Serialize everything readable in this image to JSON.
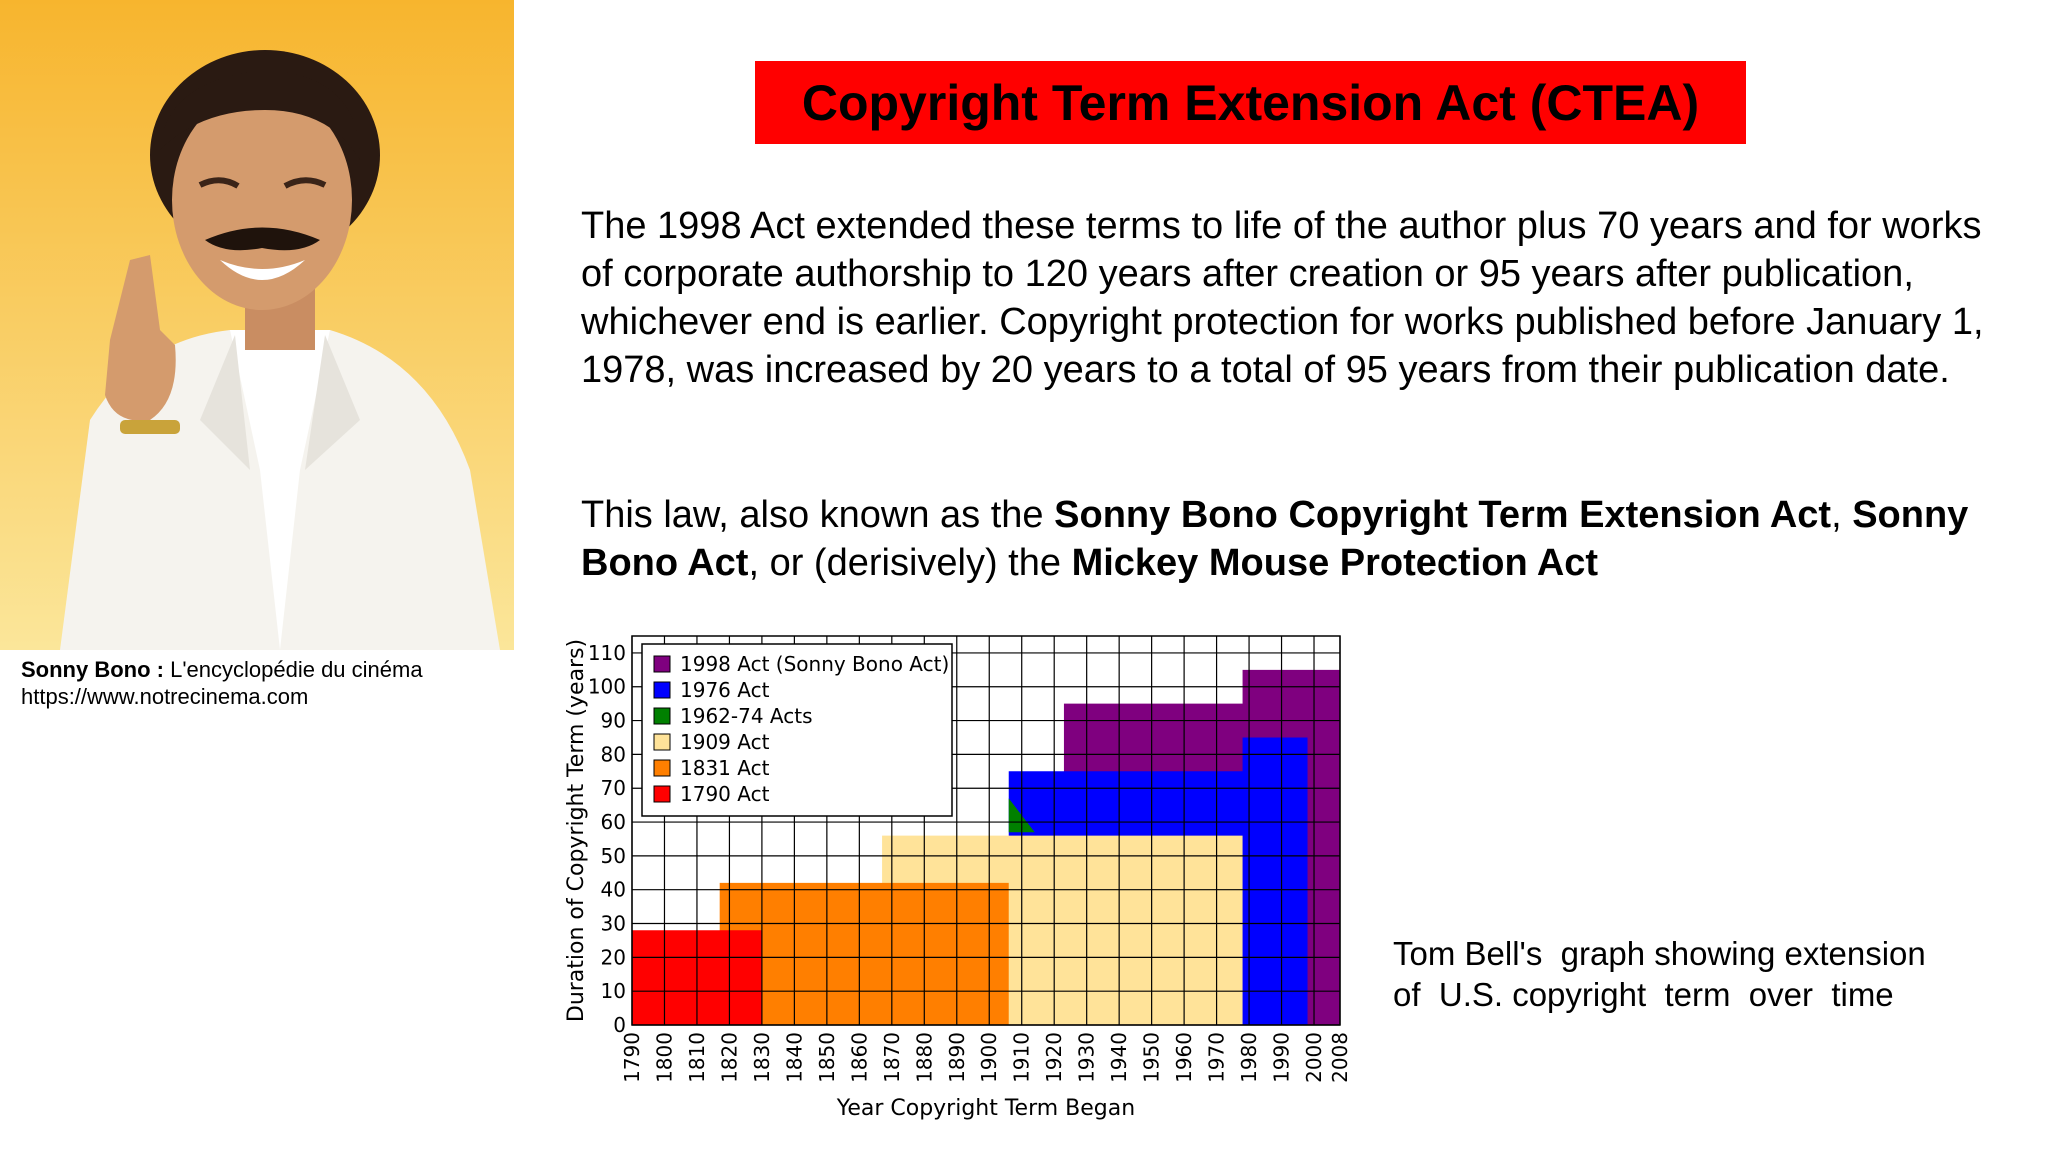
{
  "photo": {
    "description_icon": "portrait-photo",
    "caption_name": "Sonny Bono :",
    "caption_source": " L'encyclopédie du cinéma",
    "caption_url": "https://www.notrecinema.com"
  },
  "title": "Copyright Term Extension Act (CTEA)",
  "paragraph1": "The 1998 Act extended these terms to life of the author plus 70 years and for works of corporate authorship to 120 years after creation or 95 years after publication, whichever end is earlier.  Copyright protection for works published before January 1, 1978, was increased by 20 years to a total of 95 years from their publication date.",
  "paragraph2": {
    "p1": "This law, also known as the ",
    "b1": "Sonny Bono Copyright Term Extension Act",
    "p2": ", ",
    "b2": "Sonny Bono Act",
    "p3": ", or (derisively) the ",
    "b3": "Mickey Mouse Protection Act"
  },
  "chart_caption": "Tom Bell's  graph showing extension\nof  U.S. copyright  term  over  time",
  "chart_data": {
    "type": "area",
    "xlabel": "Year Copyright Term Began",
    "ylabel": "Duration of Copyright Term (years)",
    "xlim": [
      1790,
      2008
    ],
    "ylim": [
      0,
      115
    ],
    "x_ticks": [
      1790,
      1800,
      1810,
      1820,
      1830,
      1840,
      1850,
      1860,
      1870,
      1880,
      1890,
      1900,
      1910,
      1920,
      1930,
      1940,
      1950,
      1960,
      1970,
      1980,
      1990,
      2000,
      2008
    ],
    "y_ticks": [
      0,
      10,
      20,
      30,
      40,
      50,
      60,
      70,
      80,
      90,
      100,
      110
    ],
    "grid": true,
    "legend_position": "top-left",
    "series": [
      {
        "name": "1998 Act (Sonny Bono Act)",
        "color": "#7f007f",
        "points": [
          [
            1923,
            95
          ],
          [
            1978,
            95
          ],
          [
            1978,
            105
          ],
          [
            2008,
            105
          ]
        ]
      },
      {
        "name": "1976 Act",
        "color": "#0000ff",
        "points": [
          [
            1906,
            75
          ],
          [
            1978,
            75
          ],
          [
            1978,
            85
          ],
          [
            1998,
            85
          ]
        ]
      },
      {
        "name": "1962-74 Acts",
        "color": "#008000",
        "points": [
          [
            1906,
            67
          ],
          [
            1914,
            57
          ]
        ]
      },
      {
        "name": "1909 Act",
        "color": "#ffe399",
        "points": [
          [
            1867,
            56
          ],
          [
            1978,
            56
          ]
        ]
      },
      {
        "name": "1831 Act",
        "color": "#ff7f00",
        "points": [
          [
            1817,
            42
          ],
          [
            1906,
            42
          ]
        ]
      },
      {
        "name": "1790 Act",
        "color": "#ff0000",
        "points": [
          [
            1790,
            28
          ],
          [
            1830,
            28
          ]
        ]
      }
    ]
  }
}
